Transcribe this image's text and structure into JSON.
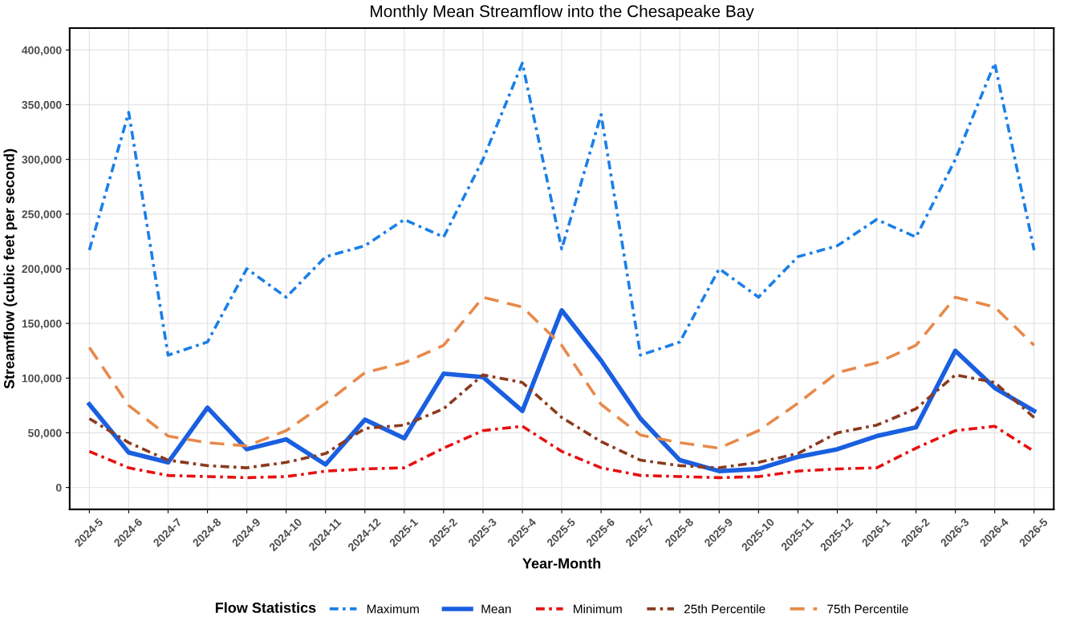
{
  "chart_data": {
    "type": "line",
    "title": "Monthly Mean Streamflow into the Chesapeake Bay",
    "xlabel": "Year-Month",
    "ylabel": "Streamflow (cubic feet per second)",
    "legend_title": "Flow Statistics",
    "categories": [
      "2024-5",
      "2024-6",
      "2024-7",
      "2024-8",
      "2024-9",
      "2024-10",
      "2024-11",
      "2024-12",
      "2025-1",
      "2025-2",
      "2025-3",
      "2025-4",
      "2025-5",
      "2025-6",
      "2025-7",
      "2025-8",
      "2025-9",
      "2025-10",
      "2025-11",
      "2025-12",
      "2026-1",
      "2026-2",
      "2026-3",
      "2026-4",
      "2026-5"
    ],
    "series": [
      {
        "name": "Maximum",
        "color": "#1a7fe8",
        "line_style": "dashdot",
        "values": [
          217000,
          343000,
          121000,
          133000,
          200000,
          174000,
          211000,
          221000,
          245000,
          229000,
          300000,
          388000,
          218000,
          341000,
          121000,
          133000,
          200000,
          174000,
          211000,
          221000,
          245000,
          229000,
          300000,
          388000,
          217000
        ]
      },
      {
        "name": "Mean",
        "color": "#1a5fe0",
        "line_style": "solid",
        "values": [
          76000,
          32000,
          23000,
          73000,
          35000,
          44000,
          21000,
          62000,
          45000,
          104000,
          101000,
          70000,
          162000,
          116000,
          63000,
          25000,
          15000,
          17000,
          28000,
          35000,
          47000,
          55000,
          125000,
          91000,
          70000
        ]
      },
      {
        "name": "Minimum",
        "color": "#e81010",
        "line_style": "dashdot",
        "values": [
          33000,
          18000,
          11000,
          10000,
          9000,
          10000,
          15000,
          17000,
          18000,
          36000,
          52000,
          56000,
          33000,
          18000,
          11000,
          10000,
          9000,
          10000,
          15000,
          17000,
          18000,
          36000,
          52000,
          56000,
          33000
        ]
      },
      {
        "name": "25th Percentile",
        "color": "#8b3a1e",
        "line_style": "dashdot",
        "values": [
          63000,
          41000,
          25000,
          20000,
          18000,
          23000,
          31000,
          54000,
          57000,
          72000,
          103000,
          96000,
          64000,
          42000,
          25000,
          20000,
          18000,
          23000,
          31000,
          50000,
          57000,
          72000,
          103000,
          96000,
          64000
        ]
      },
      {
        "name": "75th Percentile",
        "color": "#e8894a",
        "line_style": "dashed",
        "values": [
          128000,
          75000,
          47000,
          41000,
          38000,
          52000,
          77000,
          105000,
          114000,
          130000,
          174000,
          165000,
          130000,
          76000,
          48000,
          41000,
          36000,
          52000,
          77000,
          105000,
          114000,
          130000,
          174000,
          165000,
          130000
        ]
      }
    ],
    "ylim": [
      -20000,
      420000
    ],
    "yticks": [
      {
        "value": 0,
        "label": "0"
      },
      {
        "value": 50000,
        "label": "50,000"
      },
      {
        "value": 100000,
        "label": "100,000"
      },
      {
        "value": 150000,
        "label": "150,000"
      },
      {
        "value": 200000,
        "label": "200,000"
      },
      {
        "value": 250000,
        "label": "250,000"
      },
      {
        "value": 300000,
        "label": "300,000"
      },
      {
        "value": 350000,
        "label": "350,000"
      },
      {
        "value": 400000,
        "label": "400,000"
      }
    ],
    "grid": true,
    "legend": "bottom",
    "marker": "none"
  }
}
